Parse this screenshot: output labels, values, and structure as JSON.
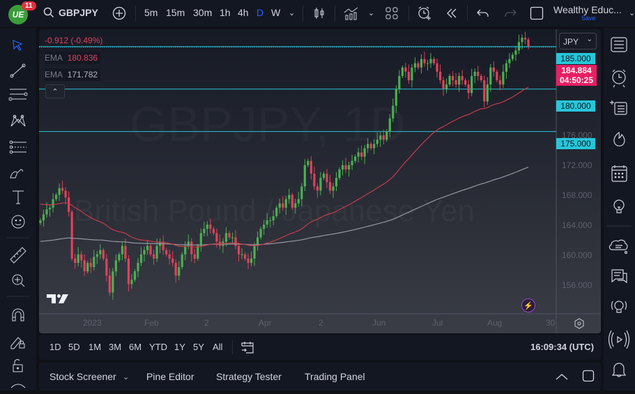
{
  "header": {
    "logo_text": "UE",
    "notification_count": "11",
    "symbol": "GBPJPY",
    "intervals": [
      "5m",
      "15m",
      "30m",
      "1h",
      "4h",
      "D",
      "W"
    ],
    "active_interval": "D",
    "layout_name": "Wealthy Educ...",
    "save_label": "Save"
  },
  "legend": {
    "change": "-0.912 (-0.49%)",
    "ema1_label": "EMA",
    "ema1_value": "180.836",
    "ema2_label": "EMA",
    "ema2_value": "171.782"
  },
  "watermark": {
    "symbol": "GBPJPY, 1D",
    "description": "British Pound / Japanese Yen"
  },
  "price_axis": {
    "currency": "JPY",
    "ticks": [
      "176.000",
      "172.000",
      "168.000",
      "164.000",
      "160.000",
      "156.000"
    ],
    "levels": [
      "185.000",
      "180.000",
      "175.000"
    ],
    "last_price": "184.884",
    "countdown": "04:50:25"
  },
  "time_axis": {
    "ticks": [
      "2023",
      "Feb",
      "2",
      "Apr",
      "2",
      "Jun",
      "Jul",
      "Aug",
      "30"
    ]
  },
  "range_bar": {
    "ranges": [
      "1D",
      "5D",
      "1M",
      "3M",
      "6M",
      "YTD",
      "1Y",
      "5Y",
      "All"
    ],
    "clock": "16:09:34 (UTC)"
  },
  "panels": {
    "items": [
      "Stock Screener",
      "Pine Editor",
      "Strategy Tester",
      "Trading Panel"
    ]
  },
  "colors": {
    "up": "#4caf50",
    "down": "#e0415a",
    "ema_fast": "#c43c4b",
    "ema_slow": "#9598a1",
    "level": "#26c6da",
    "last": "#e91e63",
    "accent": "#2962ff"
  },
  "chart_data": {
    "type": "candlestick",
    "title": "GBPJPY 1D",
    "ylim": [
      153.5,
      187
    ],
    "horizontal_levels": [
      185,
      180,
      175
    ],
    "closes": [
      164.5,
      165.2,
      165.8,
      166.0,
      167.0,
      167.5,
      168.3,
      168.0,
      167.2,
      165.5,
      160.0,
      159.5,
      160.5,
      159.8,
      158.5,
      159.5,
      159.0,
      160.2,
      160.5,
      161.0,
      160.0,
      158.0,
      156.0,
      158.5,
      159.8,
      160.5,
      161.5,
      160.0,
      157.0,
      157.5,
      158.5,
      159.5,
      160.5,
      161.0,
      161.5,
      160.5,
      160.0,
      161.5,
      162.0,
      161.0,
      160.5,
      160.0,
      159.5,
      158.0,
      159.0,
      160.5,
      161.5,
      162.0,
      160.5,
      160.0,
      161.5,
      163.0,
      163.5,
      164.0,
      163.5,
      163.0,
      162.0,
      161.5,
      162.0,
      163.0,
      162.5,
      162.5,
      161.5,
      160.5,
      160.5,
      160.0,
      159.5,
      160.0,
      161.5,
      162.5,
      163.5,
      164.0,
      164.5,
      164.5,
      165.0,
      166.0,
      166.5,
      166.0,
      167.0,
      167.5,
      166.0,
      166.5,
      167.0,
      168.5,
      171.0,
      171.5,
      170.0,
      168.5,
      168.0,
      169.5,
      170.0,
      169.0,
      168.0,
      168.5,
      169.5,
      170.5,
      171.0,
      170.5,
      171.0,
      171.5,
      172.0,
      172.5,
      172.0,
      173.0,
      173.5,
      173.0,
      173.5,
      174.0,
      174.5,
      174.0,
      175.0,
      176.5,
      178.0,
      180.0,
      181.5,
      182.5,
      182.0,
      181.0,
      182.5,
      183.0,
      182.5,
      183.5,
      183.0,
      183.0,
      183.5,
      183.0,
      182.0,
      181.0,
      180.0,
      180.5,
      181.5,
      181.0,
      180.5,
      181.5,
      181.0,
      180.5,
      179.5,
      181.5,
      182.0,
      181.5,
      181.0,
      178.5,
      180.5,
      182.5,
      182.0,
      181.0,
      180.5,
      182.0,
      183.0,
      183.5,
      184.0,
      184.5,
      185.5,
      186.0,
      185.8,
      184.9
    ],
    "ema_fast_end": 180.836,
    "ema_slow_end": 171.782
  }
}
